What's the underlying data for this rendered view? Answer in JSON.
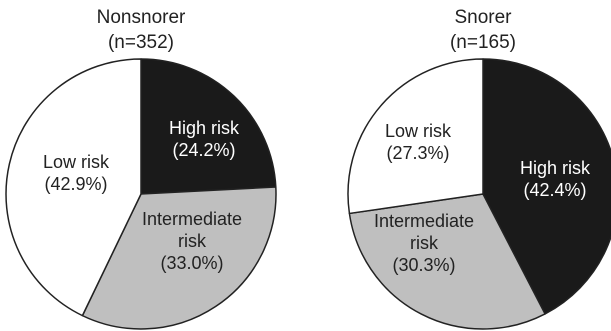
{
  "chart_data": [
    {
      "type": "pie",
      "title": "Nonsnorer",
      "subtitle": "(n=352)",
      "slices": [
        {
          "label": "High risk",
          "value": 24.2,
          "value_text": "(24.2%)",
          "color": "#1a1a1a",
          "text_color": "#ffffff"
        },
        {
          "label": "Intermediate risk",
          "label_lines": [
            "Intermediate",
            "risk"
          ],
          "value": 33.0,
          "value_text": "(33.0%)",
          "color": "#bfbfbf",
          "text_color": "#222222"
        },
        {
          "label": "Low risk",
          "value": 42.9,
          "value_text": "(42.9%)",
          "color": "#ffffff",
          "text_color": "#222222"
        }
      ]
    },
    {
      "type": "pie",
      "title": "Snorer",
      "subtitle": "(n=165)",
      "slices": [
        {
          "label": "High risk",
          "value": 42.4,
          "value_text": "(42.4%)",
          "color": "#1a1a1a",
          "text_color": "#ffffff"
        },
        {
          "label": "Intermediate risk",
          "label_lines": [
            "Intermediate",
            "risk"
          ],
          "value": 30.3,
          "value_text": "(30.3%)",
          "color": "#bfbfbf",
          "text_color": "#222222"
        },
        {
          "label": "Low risk",
          "value": 27.3,
          "value_text": "(27.3%)",
          "color": "#ffffff",
          "text_color": "#222222"
        }
      ]
    }
  ]
}
